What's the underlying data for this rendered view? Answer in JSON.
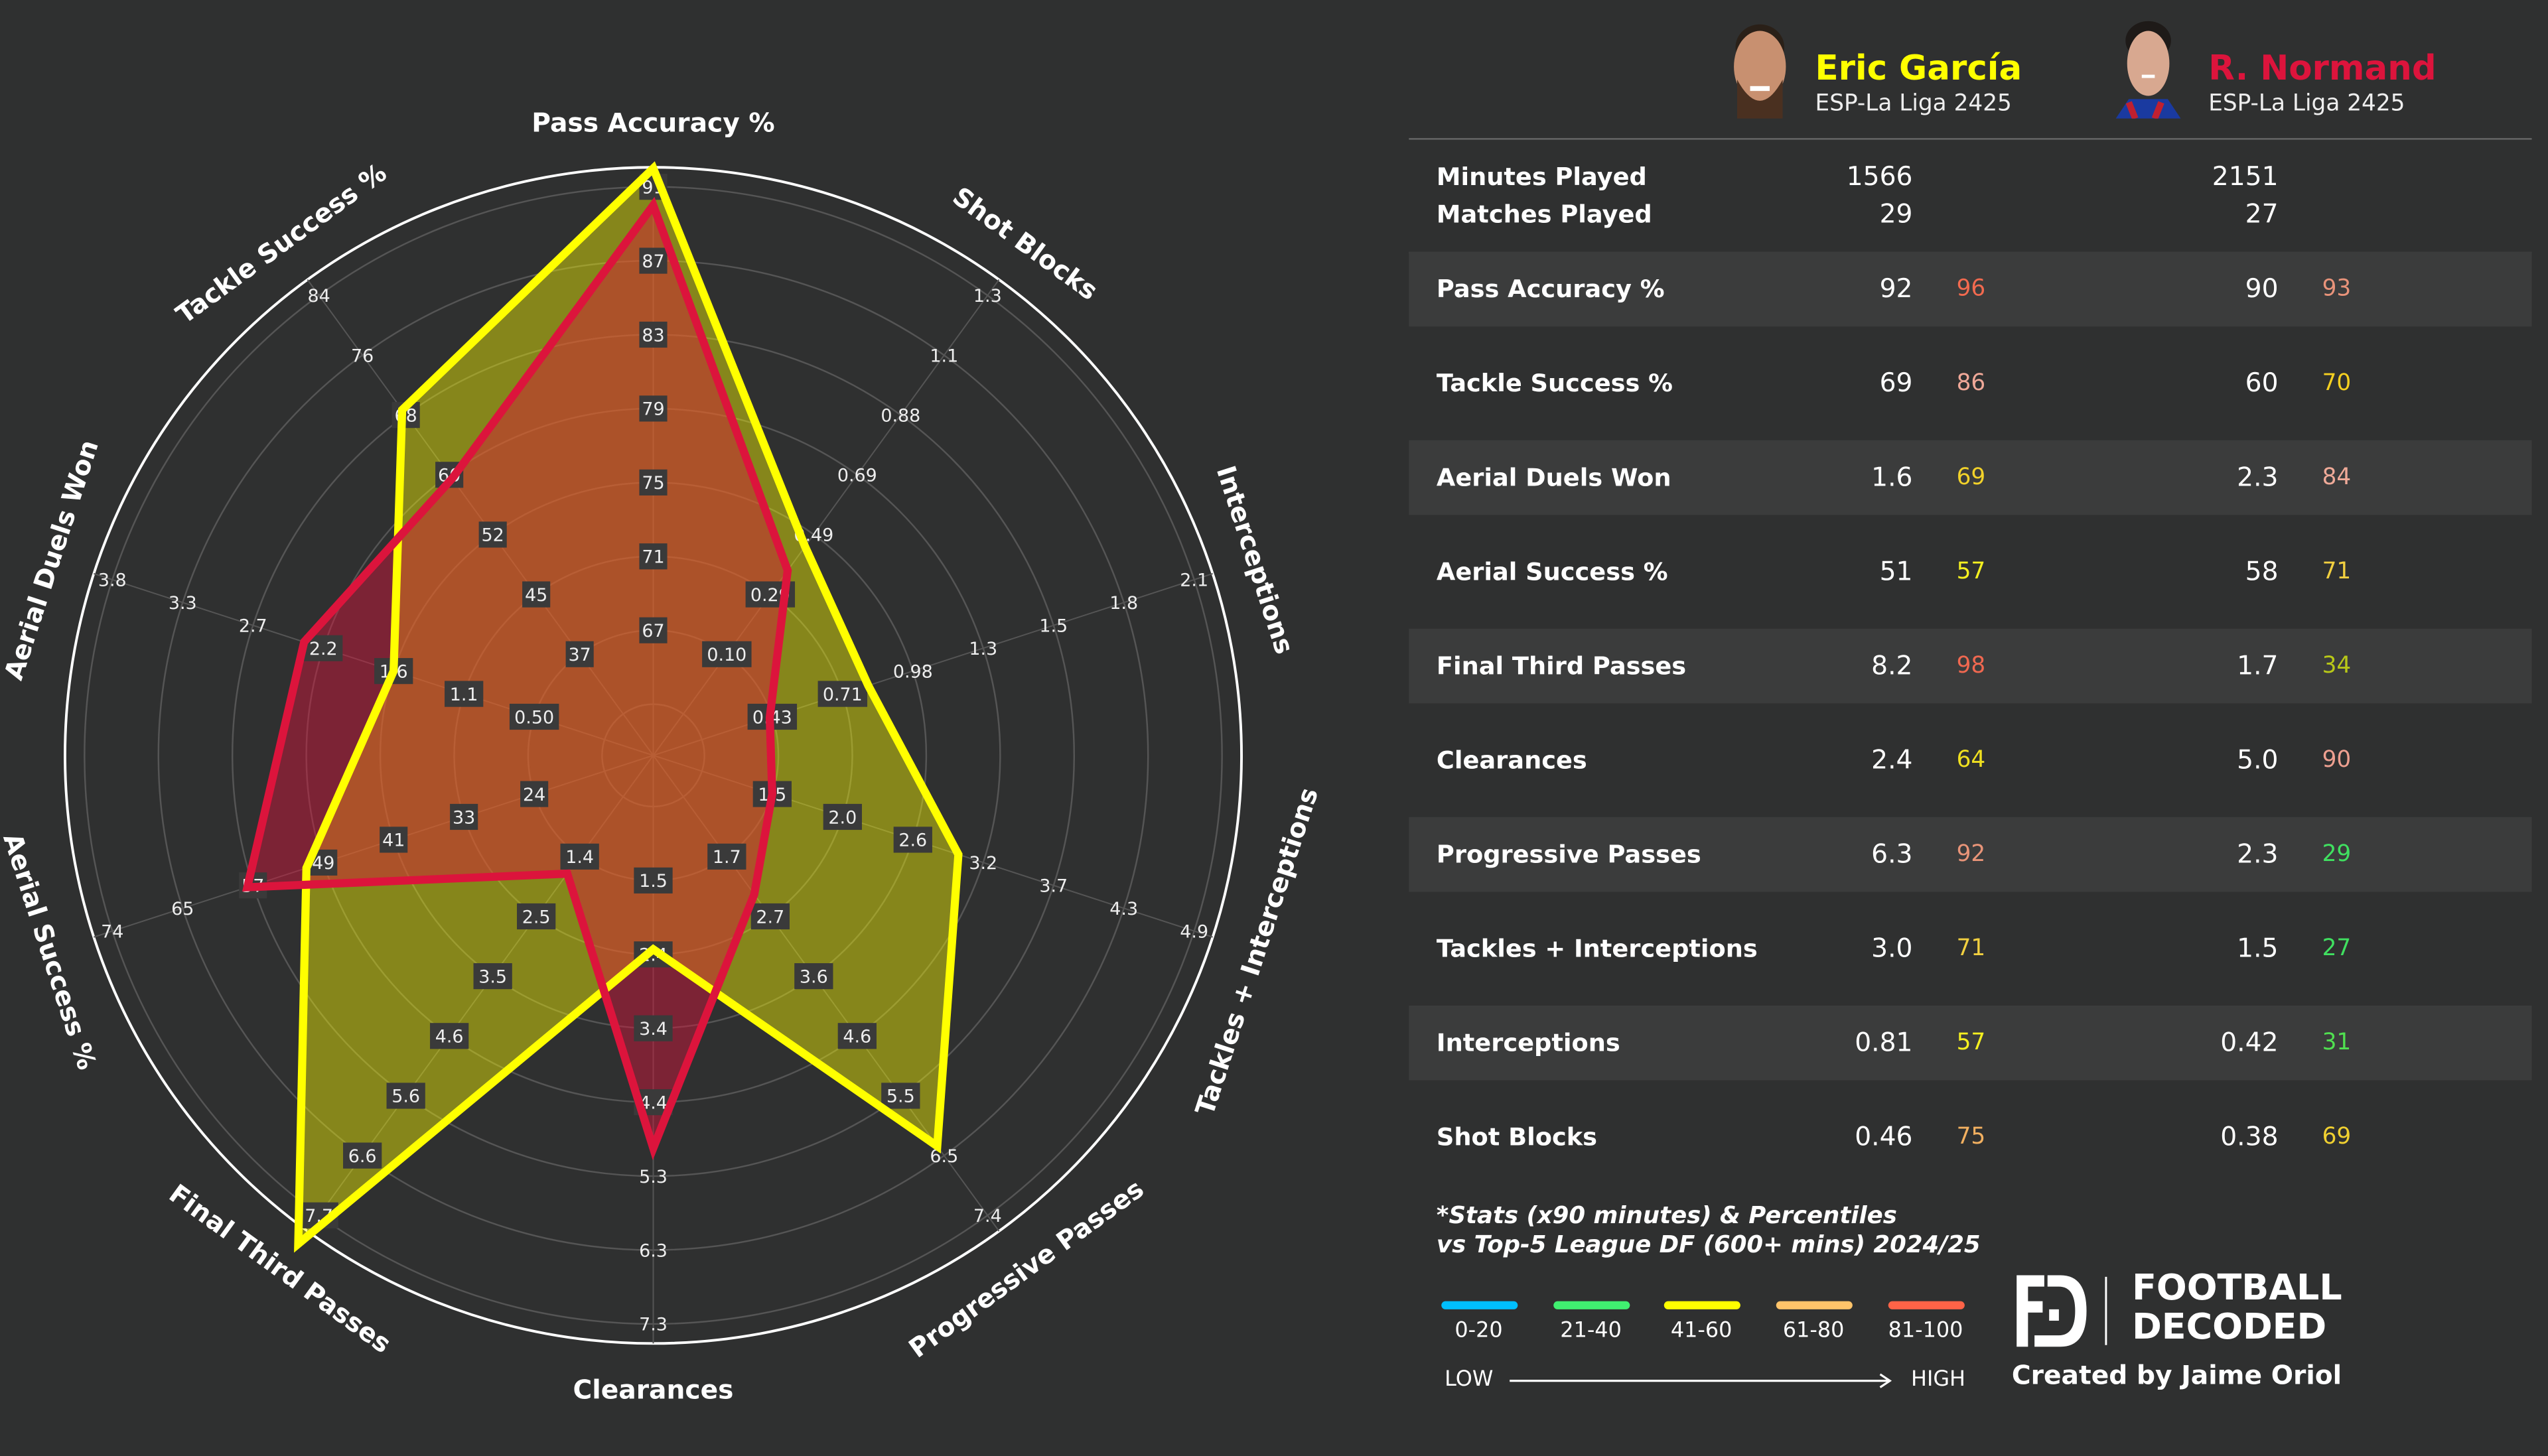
{
  "chart_data": {
    "type": "radar",
    "axes": [
      {
        "label": "Pass Accuracy %",
        "ticks": [
          "67",
          "71",
          "75",
          "79",
          "83",
          "87",
          "91"
        ]
      },
      {
        "label": "Shot Blocks",
        "ticks": [
          "0.10",
          "0.29",
          "0.49",
          "0.69",
          "0.88",
          "1.1",
          "1.3"
        ]
      },
      {
        "label": "Interceptions",
        "ticks": [
          "0.43",
          "0.71",
          "0.98",
          "1.3",
          "1.5",
          "1.8",
          "2.1"
        ]
      },
      {
        "label": "Tackles + Interceptions",
        "ticks": [
          "1.5",
          "2.0",
          "2.6",
          "3.2",
          "3.7",
          "4.3",
          "4.9"
        ]
      },
      {
        "label": "Progressive Passes",
        "ticks": [
          "1.7",
          "2.7",
          "3.6",
          "4.6",
          "5.5",
          "6.5",
          "7.4"
        ]
      },
      {
        "label": "Clearances",
        "ticks": [
          "1.5",
          "2.4",
          "3.4",
          "4.4",
          "5.3",
          "6.3",
          "7.3"
        ]
      },
      {
        "label": "Final Third Passes",
        "ticks": [
          "1.4",
          "2.5",
          "3.5",
          "4.6",
          "5.6",
          "6.6",
          "7.7"
        ]
      },
      {
        "label": "Aerial Success %",
        "ticks": [
          "24",
          "33",
          "41",
          "49",
          "57",
          "65",
          "74"
        ]
      },
      {
        "label": "Aerial Duels Won",
        "ticks": [
          "0.50",
          "1.1",
          "1.6",
          "2.2",
          "2.7",
          "3.3",
          "3.8"
        ]
      },
      {
        "label": "Tackle Success %",
        "ticks": [
          "37",
          "45",
          "52",
          "60",
          "68",
          "76",
          "84"
        ]
      }
    ],
    "series": [
      {
        "name": "Eric García",
        "color": "#ffff00",
        "values": [
          92,
          0.46,
          0.81,
          3.0,
          6.3,
          2.4,
          8.2,
          51,
          1.6,
          69
        ]
      },
      {
        "name": "R. Normand",
        "color": "#dc143c",
        "values": [
          90,
          0.38,
          0.42,
          1.5,
          2.3,
          5.0,
          1.7,
          58,
          2.3,
          60
        ]
      }
    ],
    "grid": true
  },
  "players": [
    {
      "name": "Eric García",
      "league": "ESP-La Liga 2425",
      "color": "#ffff00",
      "minutes": "1566",
      "matches": "29"
    },
    {
      "name": "R. Normand",
      "league": "ESP-La Liga 2425",
      "color": "#dc143c",
      "minutes": "2151",
      "matches": "27"
    }
  ],
  "summary_labels": {
    "minutes": "Minutes Played",
    "matches": "Matches Played"
  },
  "stats": [
    {
      "label": "Pass Accuracy %",
      "p1": "92",
      "p1_pct": "96",
      "p1_color": "#f26a4f",
      "p2": "90",
      "p2_pct": "93",
      "p2_color": "#e8937a"
    },
    {
      "label": "Tackle Success %",
      "p1": "69",
      "p1_pct": "86",
      "p1_color": "#f0a898",
      "p2": "60",
      "p2_pct": "70",
      "p2_color": "#f5d020"
    },
    {
      "label": "Aerial Duels Won",
      "p1": "1.6",
      "p1_pct": "69",
      "p1_color": "#f2d22a",
      "p2": "2.3",
      "p2_pct": "84",
      "p2_color": "#efaa98"
    },
    {
      "label": "Aerial Success %",
      "p1": "51",
      "p1_pct": "57",
      "p1_color": "#f5f020",
      "p2": "58",
      "p2_pct": "71",
      "p2_color": "#f2d040"
    },
    {
      "label": "Final Third Passes",
      "p1": "8.2",
      "p1_pct": "98",
      "p1_color": "#f06850",
      "p2": "1.7",
      "p2_pct": "34",
      "p2_color": "#b8c818"
    },
    {
      "label": "Clearances",
      "p1": "2.4",
      "p1_pct": "64",
      "p1_color": "#f0e020",
      "p2": "5.0",
      "p2_pct": "90",
      "p2_color": "#eea090"
    },
    {
      "label": "Progressive Passes",
      "p1": "6.3",
      "p1_pct": "92",
      "p1_color": "#e89478",
      "p2": "2.3",
      "p2_pct": "29",
      "p2_color": "#40e060"
    },
    {
      "label": "Tackles + Interceptions",
      "p1": "3.0",
      "p1_pct": "71",
      "p1_color": "#f2d040",
      "p2": "1.5",
      "p2_pct": "27",
      "p2_color": "#40e060"
    },
    {
      "label": "Interceptions",
      "p1": "0.81",
      "p1_pct": "57",
      "p1_color": "#f5f020",
      "p2": "0.42",
      "p2_pct": "31",
      "p2_color": "#50e050"
    },
    {
      "label": "Shot Blocks",
      "p1": "0.46",
      "p1_pct": "75",
      "p1_color": "#f2b060",
      "p2": "0.38",
      "p2_pct": "69",
      "p2_color": "#f0d030"
    }
  ],
  "note": {
    "line1": "*Stats (x90 minutes) & Percentiles",
    "line2": "vs Top-5 League DF (600+ mins) 2024/25"
  },
  "legend": {
    "items": [
      {
        "label": "0-20",
        "color": "#00bfff"
      },
      {
        "label": "21-40",
        "color": "#40f070"
      },
      {
        "label": "41-60",
        "color": "#ffff00"
      },
      {
        "label": "61-80",
        "color": "#ffc46a"
      },
      {
        "label": "81-100",
        "color": "#ff6347"
      }
    ],
    "low": "LOW",
    "high": "HIGH"
  },
  "brand": {
    "line1": "FOOTBALL",
    "line2": "DECODED",
    "credit": "Created by Jaime Oriol"
  }
}
